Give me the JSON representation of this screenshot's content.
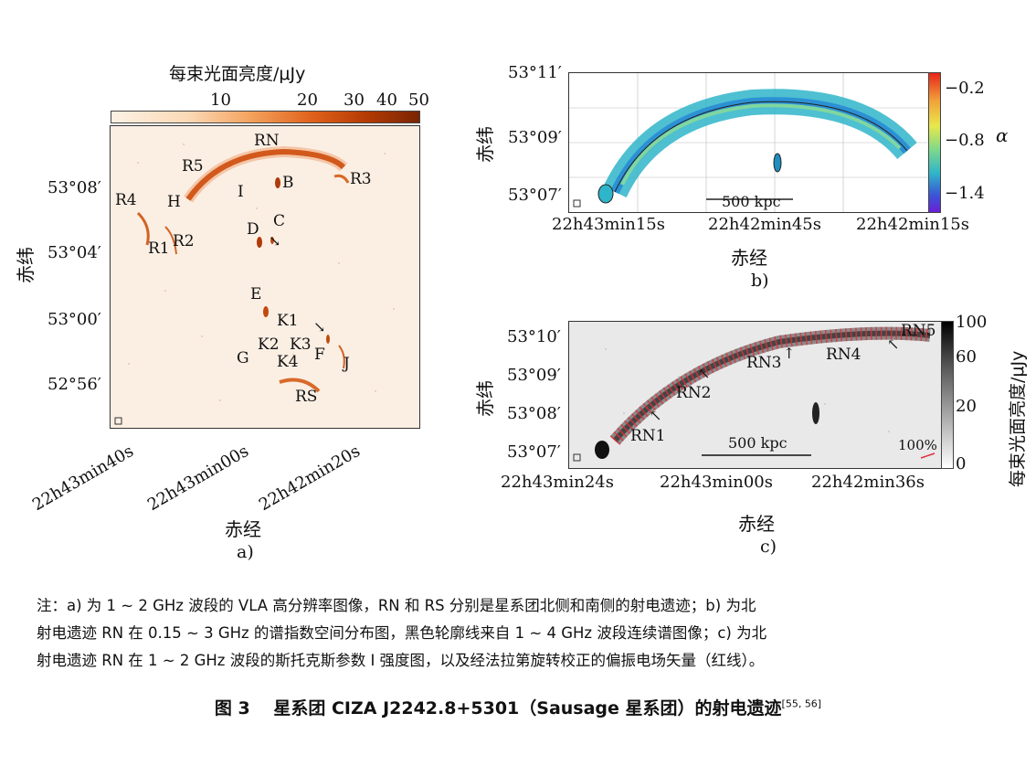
{
  "panel_a": {
    "colorbar_title": "每束光面亮度/μJy",
    "colorbar_ticks": [
      "10",
      "20",
      "30",
      "40",
      "50"
    ],
    "labels": [
      "RN",
      "R5",
      "R3",
      "R4",
      "H",
      "I",
      "B",
      "R2",
      "R1",
      "D",
      "C",
      "E",
      "K1",
      "K2",
      "K3",
      "K4",
      "G",
      "F",
      "J",
      "RS"
    ],
    "y_ticks": [
      "53°08′",
      "53°04′",
      "53°00′",
      "52°56′"
    ],
    "x_ticks": [
      "22h43min40s",
      "22h43min00s",
      "22h42min20s"
    ],
    "ylabel": "赤纬",
    "xlabel": "赤经",
    "tag": "a)"
  },
  "panel_b": {
    "y_ticks": [
      "53°11′",
      "53°09′",
      "53°07′"
    ],
    "x_ticks": [
      "22h43min15s",
      "22h42min45s",
      "22h42min15s"
    ],
    "ylabel": "赤纬",
    "xlabel": "赤经",
    "colorbar_ticks": [
      "−0.2",
      "−0.8",
      "−1.4"
    ],
    "colorbar_label": "α",
    "scalebar": "500 kpc",
    "tag": "b)"
  },
  "panel_c": {
    "y_ticks": [
      "53°10′",
      "53°09′",
      "53°08′",
      "53°07′"
    ],
    "x_ticks": [
      "22h43min24s",
      "22h43min00s",
      "22h42min36s"
    ],
    "ylabel": "赤纬",
    "xlabel": "赤经",
    "colorbar_ticks": [
      "100",
      "60",
      "20",
      "0"
    ],
    "colorbar_label": "每束光面亮度/μJy",
    "labels": [
      "RN1",
      "RN2",
      "RN3",
      "RN4",
      "RN5"
    ],
    "scalebar": "500 kpc",
    "pol_scale": "100%",
    "tag": "c)"
  },
  "note": {
    "line1": "注：a) 为 1 ∼ 2 GHz 波段的 VLA 高分辨率图像，RN 和 RS 分别是星系团北侧和南侧的射电遗迹；b) 为北",
    "line2": "射电遗迹 RN 在 0.15 ∼ 3 GHz 的谱指数空间分布图，黑色轮廓线来自 1 ∼ 4 GHz 波段连续谱图像；c) 为北",
    "line3": "射电遗迹 RN 在 1 ∼ 2 GHz 波段的斯托克斯参数 I 强度图，以及经法拉第旋转校正的偏振电场矢量（红线）。"
  },
  "caption": {
    "text": "图 3　 星系团 CIZA J2242.8+5301（Sausage 星系团）的射电遗迹",
    "ref": "[55, 56]"
  }
}
